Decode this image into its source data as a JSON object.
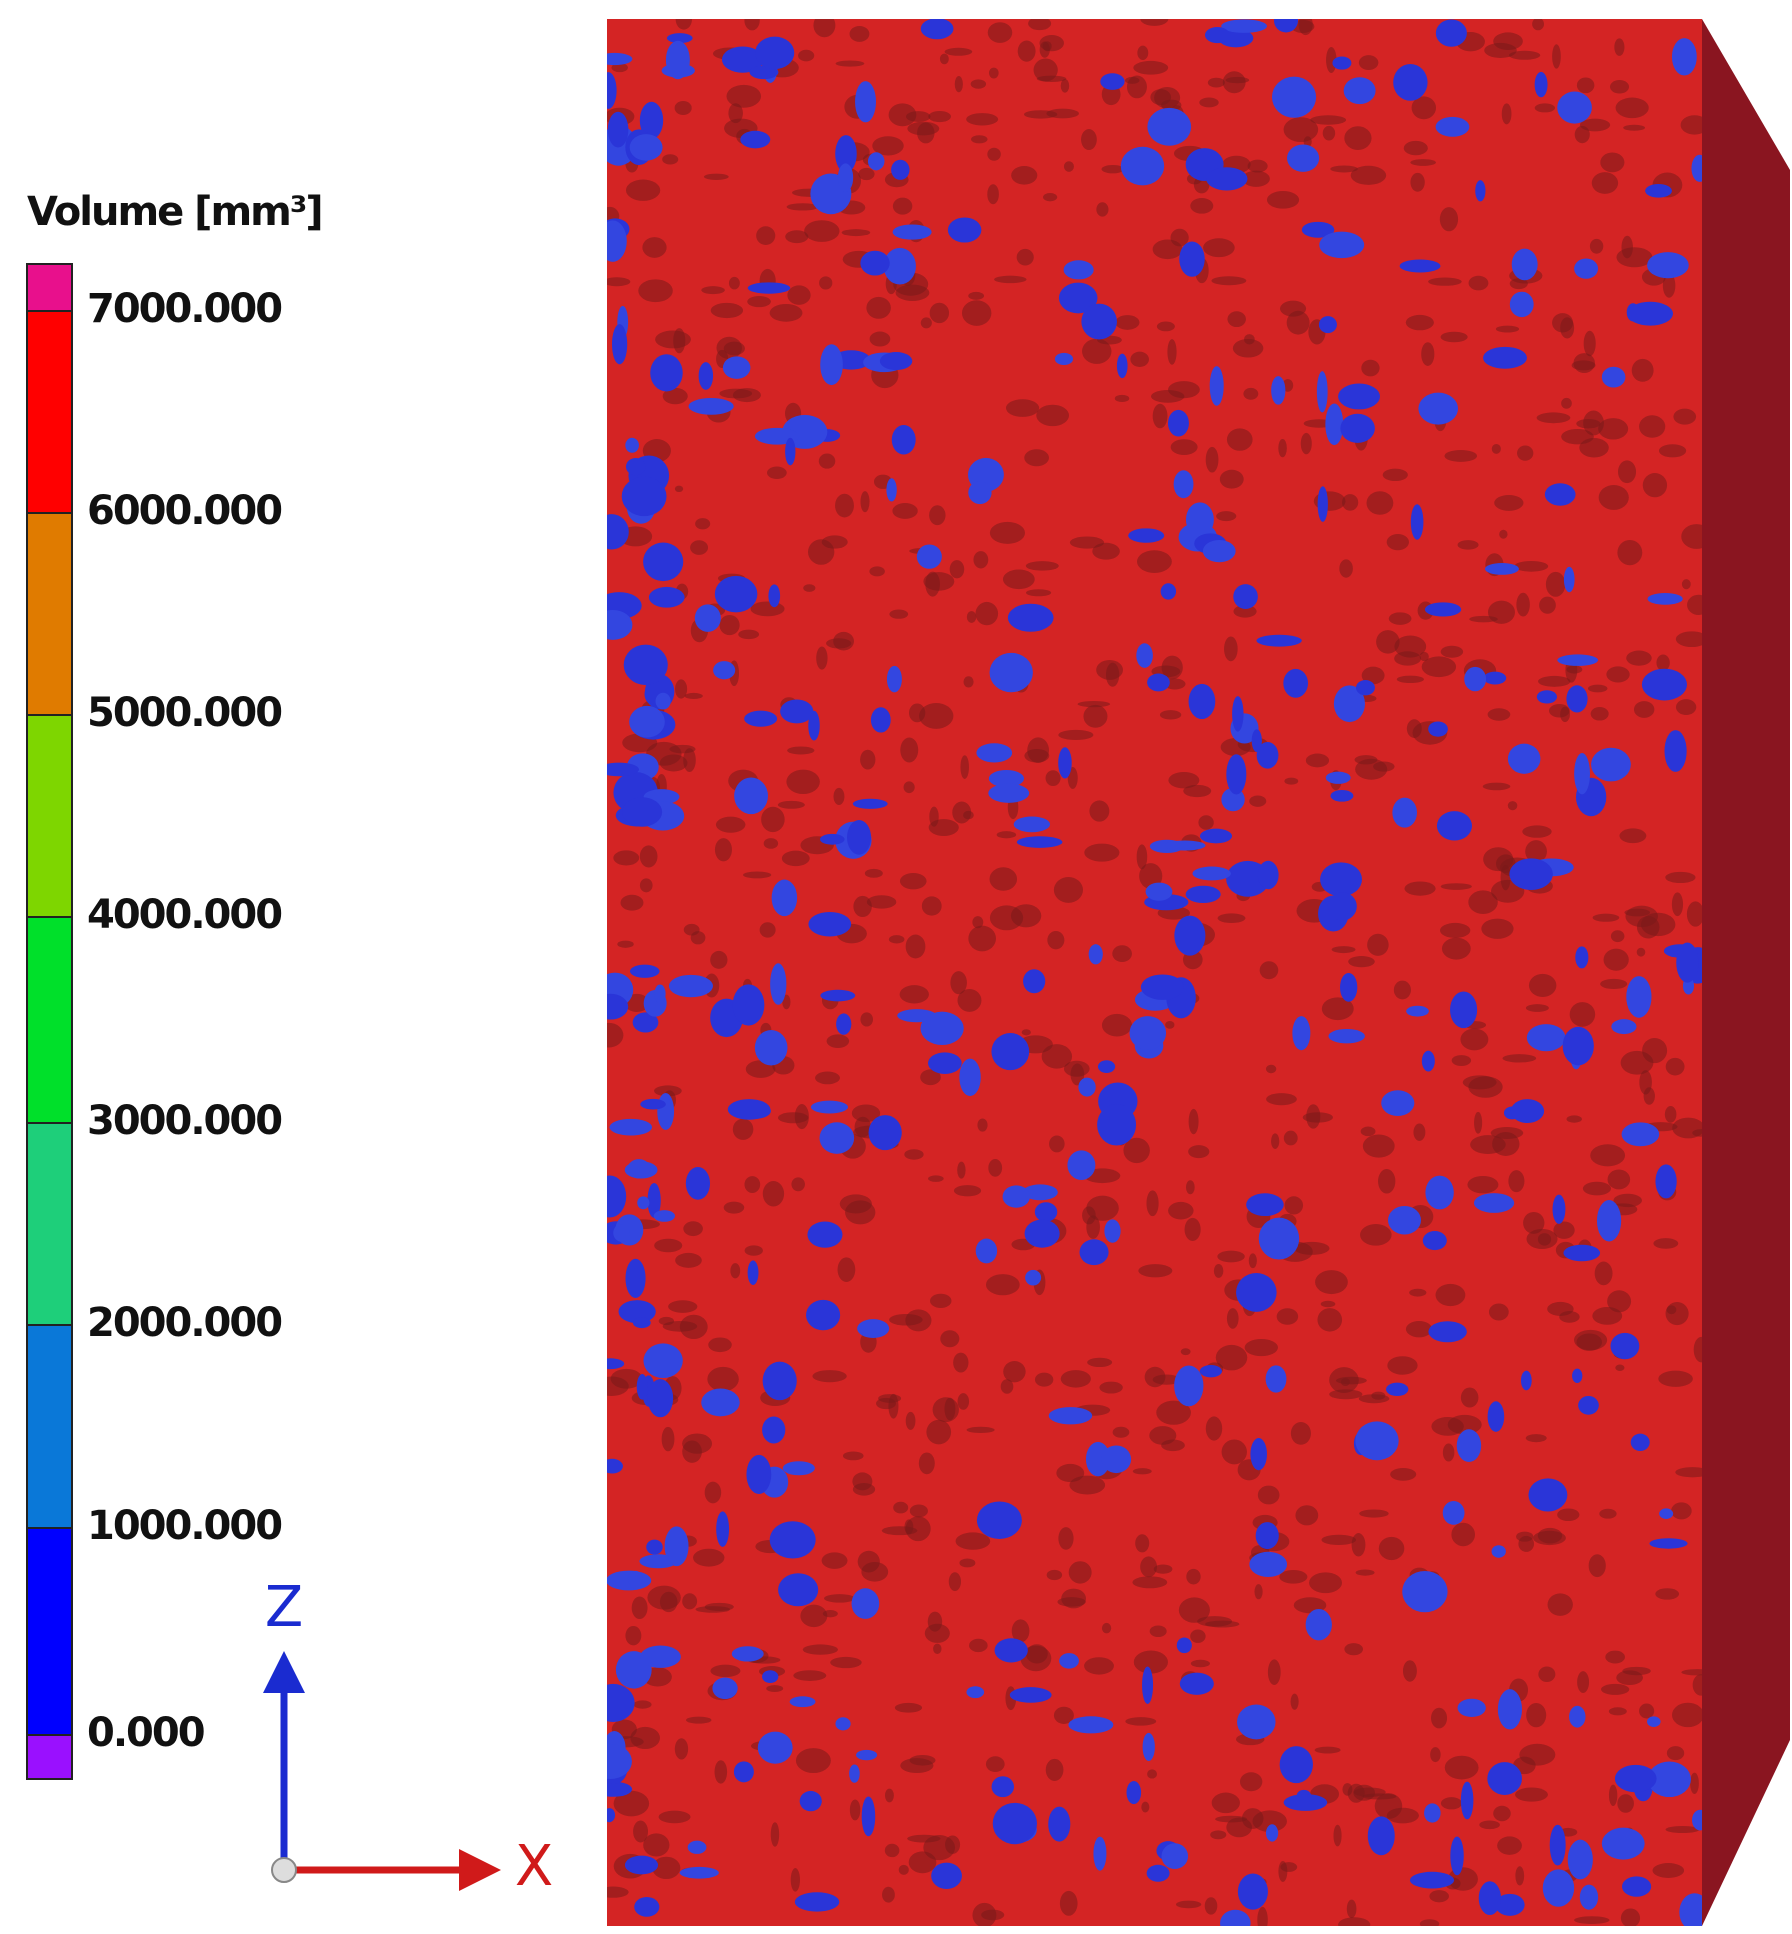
{
  "legend": {
    "title": "Volume [mm³]",
    "labels": [
      "7000.000",
      "6000.000",
      "5000.000",
      "4000.000",
      "3000.000",
      "2000.000",
      "1000.000",
      "0.000"
    ],
    "colors": [
      "#e8108c",
      "#ff0000",
      "#e07b00",
      "#7ed600",
      "#00e02a",
      "#1ecf7a",
      "#0a78d8",
      "#0000ff",
      "#9a10ff"
    ]
  },
  "axes": {
    "z": "Z",
    "x": "X"
  }
}
